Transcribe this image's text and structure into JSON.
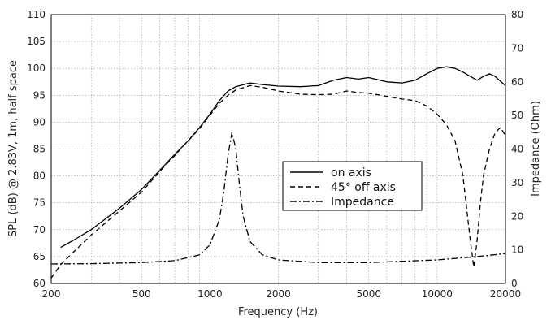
{
  "chart_data": {
    "type": "line",
    "title": "",
    "xlabel": "Frequency (Hz)",
    "ylabel": "SPL (dB) @ 2.83V, 1m, half space",
    "y2label": "Impedance (Ohm)",
    "xscale": "log",
    "xlim": [
      200,
      20000
    ],
    "ylim": [
      60,
      110
    ],
    "y2lim": [
      0,
      80
    ],
    "xticks": [
      200,
      500,
      1000,
      2000,
      5000,
      10000,
      20000
    ],
    "xtick_labels": [
      "200",
      "500",
      "1000",
      "2000",
      "5000",
      "10000",
      "20000"
    ],
    "yticks": [
      60,
      65,
      70,
      75,
      80,
      85,
      90,
      95,
      100,
      105,
      110
    ],
    "ytick_labels": [
      "60",
      "65",
      "70",
      "75",
      "80",
      "85",
      "90",
      "95",
      "100",
      "105",
      "110"
    ],
    "y2ticks": [
      0,
      10,
      20,
      30,
      40,
      50,
      60,
      70,
      80
    ],
    "y2tick_labels": [
      "0",
      "10",
      "20",
      "30",
      "40",
      "50",
      "60",
      "70",
      "80"
    ],
    "grid": true,
    "legend_position": "center-right",
    "series": [
      {
        "name": "on axis",
        "axis": "left",
        "style": "solid",
        "color": "#000000",
        "x": [
          220,
          250,
          300,
          400,
          500,
          600,
          700,
          800,
          900,
          1000,
          1100,
          1200,
          1300,
          1500,
          1700,
          2000,
          2500,
          3000,
          3500,
          4000,
          4500,
          5000,
          6000,
          7000,
          8000,
          9000,
          10000,
          11000,
          12000,
          13000,
          14000,
          15000,
          16000,
          17000,
          18000,
          20000
        ],
        "y": [
          66.7,
          68.0,
          70.0,
          74.0,
          77.5,
          81.0,
          84.0,
          86.5,
          89.0,
          91.5,
          94.0,
          95.8,
          96.6,
          97.3,
          97.0,
          96.7,
          96.6,
          96.8,
          97.8,
          98.3,
          98.0,
          98.3,
          97.5,
          97.3,
          97.8,
          99.0,
          100.0,
          100.3,
          100.0,
          99.3,
          98.5,
          97.8,
          98.5,
          99.0,
          98.5,
          96.8
        ]
      },
      {
        "name": "45° off axis",
        "axis": "left",
        "style": "dashed",
        "color": "#000000",
        "x": [
          200,
          220,
          250,
          300,
          400,
          500,
          600,
          700,
          800,
          900,
          1000,
          1100,
          1200,
          1300,
          1500,
          1700,
          2000,
          2500,
          3000,
          3500,
          4000,
          4500,
          5000,
          6000,
          7000,
          8000,
          9000,
          10000,
          11000,
          12000,
          13000,
          14000,
          14500,
          15000,
          15500,
          16000,
          17000,
          18000,
          19000,
          20000
        ],
        "y": [
          61.0,
          63.5,
          65.8,
          69.0,
          73.5,
          77.0,
          80.8,
          83.8,
          86.5,
          88.8,
          91.3,
          93.5,
          95.0,
          96.0,
          96.8,
          96.5,
          95.8,
          95.2,
          95.1,
          95.2,
          95.8,
          95.5,
          95.4,
          94.8,
          94.3,
          94.0,
          93.0,
          91.5,
          89.5,
          86.5,
          80.0,
          68.0,
          63.0,
          68.0,
          75.0,
          80.0,
          85.0,
          88.0,
          89.0,
          87.5
        ]
      },
      {
        "name": "Impedance",
        "axis": "right",
        "style": "dashdot",
        "color": "#000000",
        "x": [
          200,
          300,
          500,
          700,
          900,
          1000,
          1100,
          1150,
          1200,
          1250,
          1300,
          1350,
          1400,
          1500,
          1700,
          2000,
          3000,
          5000,
          10000,
          15000,
          20000
        ],
        "y": [
          5.8,
          5.9,
          6.2,
          6.8,
          8.5,
          11.5,
          19.0,
          27.0,
          38.0,
          45.0,
          40.0,
          29.0,
          20.0,
          12.5,
          8.5,
          7.0,
          6.2,
          6.2,
          7.0,
          8.0,
          8.9
        ]
      }
    ]
  }
}
